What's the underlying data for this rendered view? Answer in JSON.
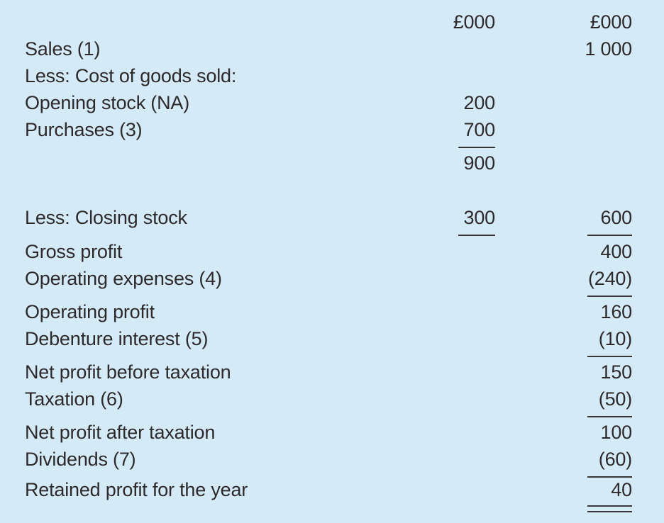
{
  "colors": {
    "background": "#d5eaf7",
    "text": "#2e2a2b",
    "rule": "#3a3536"
  },
  "statement": {
    "col_headers": [
      "£000",
      "£000"
    ],
    "rows": [
      {
        "label": "Sales (1)",
        "amount1": "",
        "amount2": "1 000"
      },
      {
        "label": "Less: Cost of goods sold:",
        "amount1": "",
        "amount2": ""
      },
      {
        "label": "Opening stock (NA)",
        "amount1": "200",
        "amount2": ""
      },
      {
        "label": "Purchases (3)",
        "amount1": "700",
        "amount2": ""
      },
      {
        "label": "",
        "amount1": "900",
        "amount2": ""
      },
      {
        "label": "Less: Closing stock",
        "amount1": "300",
        "amount2": "600"
      },
      {
        "label": "Gross profit",
        "amount1": "",
        "amount2": "400"
      },
      {
        "label": "Operating expenses (4)",
        "amount1": "",
        "amount2": "(240)"
      },
      {
        "label": "Operating profit",
        "amount1": "",
        "amount2": "160"
      },
      {
        "label": "Debenture interest (5)",
        "amount1": "",
        "amount2": "(10)"
      },
      {
        "label": "Net profit before taxation",
        "amount1": "",
        "amount2": "150"
      },
      {
        "label": "Taxation (6)",
        "amount1": "",
        "amount2": "(50)"
      },
      {
        "label": "Net profit after taxation",
        "amount1": "",
        "amount2": "100"
      },
      {
        "label": "Dividends (7)",
        "amount1": "",
        "amount2": "(60)"
      },
      {
        "label": "Retained profit for the year",
        "amount1": "",
        "amount2": "40"
      }
    ]
  }
}
